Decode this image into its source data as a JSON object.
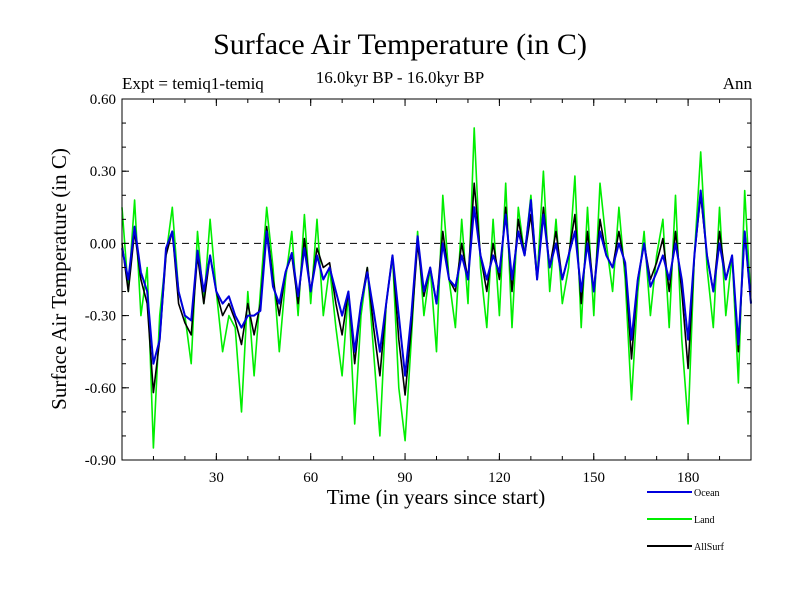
{
  "header": {
    "title": "Surface Air Temperature (in C)",
    "subtitle": "16.0kyr BP - 16.0kyr BP",
    "experiment": "Expt = temiq1-temiq",
    "period": "Ann"
  },
  "chart_data": {
    "type": "line",
    "title": "Surface Air Temperature (in C)",
    "xlabel": "Time (in years since start)",
    "ylabel": "Surface Air Temperature (in C)",
    "xlim": [
      0,
      200
    ],
    "ylim": [
      -0.9,
      0.6
    ],
    "xticks": [
      30,
      60,
      90,
      120,
      150,
      180
    ],
    "xtick_labels": [
      "30",
      "60",
      "90",
      "120",
      "150",
      "180"
    ],
    "yticks": [
      -0.9,
      -0.6,
      -0.3,
      0.0,
      0.3,
      0.6
    ],
    "ytick_labels": [
      "-0.90",
      "-0.60",
      "-0.30",
      "0.00",
      "0.30",
      "0.60"
    ],
    "reference_line": 0.0,
    "legend_position": "bottom-right",
    "series": [
      {
        "name": "Land",
        "color": "#00ee00",
        "x": [
          0,
          2,
          4,
          6,
          8,
          10,
          12,
          14,
          16,
          18,
          20,
          22,
          24,
          26,
          28,
          30,
          32,
          34,
          36,
          38,
          40,
          42,
          44,
          46,
          48,
          50,
          52,
          54,
          56,
          58,
          60,
          62,
          64,
          66,
          68,
          70,
          72,
          74,
          76,
          78,
          80,
          82,
          84,
          86,
          88,
          90,
          92,
          94,
          96,
          98,
          100,
          102,
          104,
          106,
          108,
          110,
          112,
          114,
          116,
          118,
          120,
          122,
          124,
          126,
          128,
          130,
          132,
          134,
          136,
          138,
          140,
          142,
          144,
          146,
          148,
          150,
          152,
          154,
          156,
          158,
          160,
          162,
          164,
          166,
          168,
          170,
          172,
          174,
          176,
          178,
          180,
          182,
          184,
          186,
          188,
          190,
          192,
          194,
          196,
          198,
          200
        ],
        "values": [
          0.15,
          -0.2,
          0.18,
          -0.3,
          -0.1,
          -0.85,
          -0.3,
          -0.05,
          0.15,
          -0.2,
          -0.3,
          -0.5,
          0.05,
          -0.25,
          0.1,
          -0.2,
          -0.45,
          -0.3,
          -0.35,
          -0.7,
          -0.2,
          -0.55,
          -0.2,
          0.15,
          -0.1,
          -0.45,
          -0.15,
          0.05,
          -0.3,
          0.12,
          -0.25,
          0.1,
          -0.3,
          -0.1,
          -0.35,
          -0.55,
          -0.2,
          -0.75,
          -0.3,
          -0.1,
          -0.45,
          -0.8,
          -0.25,
          -0.05,
          -0.6,
          -0.82,
          -0.4,
          0.05,
          -0.3,
          -0.1,
          -0.45,
          0.2,
          -0.15,
          -0.35,
          0.1,
          -0.25,
          0.48,
          -0.1,
          -0.35,
          0.1,
          -0.3,
          0.25,
          -0.35,
          0.15,
          -0.05,
          0.2,
          -0.15,
          0.3,
          -0.2,
          0.1,
          -0.25,
          -0.1,
          0.28,
          -0.35,
          0.15,
          -0.3,
          0.25,
          0.0,
          -0.2,
          0.15,
          -0.15,
          -0.65,
          -0.2,
          0.05,
          -0.3,
          -0.05,
          0.1,
          -0.35,
          0.2,
          -0.4,
          -0.75,
          -0.05,
          0.38,
          -0.1,
          -0.35,
          0.15,
          -0.3,
          -0.05,
          -0.58,
          0.22,
          -0.25
        ]
      },
      {
        "name": "AllSurf",
        "color": "#000000",
        "x": [
          0,
          2,
          4,
          6,
          8,
          10,
          12,
          14,
          16,
          18,
          20,
          22,
          24,
          26,
          28,
          30,
          32,
          34,
          36,
          38,
          40,
          42,
          44,
          46,
          48,
          50,
          52,
          54,
          56,
          58,
          60,
          62,
          64,
          66,
          68,
          70,
          72,
          74,
          76,
          78,
          80,
          82,
          84,
          86,
          88,
          90,
          92,
          94,
          96,
          98,
          100,
          102,
          104,
          106,
          108,
          110,
          112,
          114,
          116,
          118,
          120,
          122,
          124,
          126,
          128,
          130,
          132,
          134,
          136,
          138,
          140,
          142,
          144,
          146,
          148,
          150,
          152,
          154,
          156,
          158,
          160,
          162,
          164,
          166,
          168,
          170,
          172,
          174,
          176,
          178,
          180,
          182,
          184,
          186,
          188,
          190,
          192,
          194,
          196,
          198,
          200
        ],
        "values": [
          0.0,
          -0.2,
          0.05,
          -0.15,
          -0.25,
          -0.62,
          -0.4,
          -0.05,
          0.05,
          -0.25,
          -0.33,
          -0.38,
          -0.05,
          -0.25,
          -0.05,
          -0.2,
          -0.3,
          -0.25,
          -0.32,
          -0.42,
          -0.25,
          -0.38,
          -0.25,
          0.07,
          -0.15,
          -0.3,
          -0.12,
          -0.05,
          -0.25,
          0.02,
          -0.2,
          -0.02,
          -0.1,
          -0.08,
          -0.25,
          -0.38,
          -0.2,
          -0.5,
          -0.25,
          -0.1,
          -0.35,
          -0.55,
          -0.25,
          -0.05,
          -0.4,
          -0.63,
          -0.35,
          0.0,
          -0.22,
          -0.1,
          -0.25,
          0.05,
          -0.15,
          -0.2,
          0.0,
          -0.15,
          0.25,
          -0.05,
          -0.2,
          0.0,
          -0.15,
          0.15,
          -0.2,
          0.1,
          -0.05,
          0.12,
          -0.15,
          0.15,
          -0.1,
          0.05,
          -0.15,
          -0.05,
          0.12,
          -0.25,
          0.05,
          -0.2,
          0.1,
          -0.05,
          -0.1,
          0.05,
          -0.1,
          -0.48,
          -0.15,
          0.0,
          -0.15,
          -0.08,
          0.02,
          -0.2,
          0.05,
          -0.2,
          -0.52,
          -0.05,
          0.2,
          -0.05,
          -0.2,
          0.05,
          -0.15,
          -0.05,
          -0.45,
          0.05,
          -0.25
        ]
      },
      {
        "name": "Ocean",
        "color": "#0000dd",
        "x": [
          0,
          2,
          4,
          6,
          8,
          10,
          12,
          14,
          16,
          18,
          20,
          22,
          24,
          26,
          28,
          30,
          32,
          34,
          36,
          38,
          40,
          42,
          44,
          46,
          48,
          50,
          52,
          54,
          56,
          58,
          60,
          62,
          64,
          66,
          68,
          70,
          72,
          74,
          76,
          78,
          80,
          82,
          84,
          86,
          88,
          90,
          92,
          94,
          96,
          98,
          100,
          102,
          104,
          106,
          108,
          110,
          112,
          114,
          116,
          118,
          120,
          122,
          124,
          126,
          128,
          130,
          132,
          134,
          136,
          138,
          140,
          142,
          144,
          146,
          148,
          150,
          152,
          154,
          156,
          158,
          160,
          162,
          164,
          166,
          168,
          170,
          172,
          174,
          176,
          178,
          180,
          182,
          184,
          186,
          188,
          190,
          192,
          194,
          196,
          198,
          200
        ],
        "values": [
          -0.02,
          -0.15,
          0.07,
          -0.12,
          -0.2,
          -0.5,
          -0.4,
          -0.02,
          0.05,
          -0.2,
          -0.3,
          -0.32,
          -0.03,
          -0.2,
          -0.05,
          -0.2,
          -0.25,
          -0.22,
          -0.3,
          -0.35,
          -0.3,
          -0.3,
          -0.28,
          0.05,
          -0.18,
          -0.25,
          -0.12,
          -0.04,
          -0.22,
          -0.02,
          -0.2,
          -0.05,
          -0.15,
          -0.1,
          -0.2,
          -0.3,
          -0.2,
          -0.45,
          -0.25,
          -0.12,
          -0.28,
          -0.45,
          -0.25,
          -0.05,
          -0.3,
          -0.55,
          -0.3,
          0.03,
          -0.2,
          -0.1,
          -0.25,
          0.0,
          -0.15,
          -0.18,
          -0.05,
          -0.15,
          0.15,
          -0.05,
          -0.15,
          -0.05,
          -0.12,
          0.12,
          -0.15,
          0.05,
          -0.05,
          0.18,
          -0.15,
          0.12,
          -0.1,
          0.0,
          -0.15,
          -0.05,
          0.05,
          -0.2,
          0.0,
          -0.2,
          0.05,
          -0.05,
          -0.1,
          0.0,
          -0.08,
          -0.4,
          -0.15,
          0.0,
          -0.18,
          -0.12,
          -0.05,
          -0.15,
          0.0,
          -0.15,
          -0.4,
          -0.05,
          0.22,
          -0.05,
          -0.2,
          0.0,
          -0.15,
          -0.05,
          -0.42,
          0.05,
          -0.25
        ]
      }
    ],
    "legend": [
      {
        "name": "Ocean",
        "color": "#0000dd"
      },
      {
        "name": "Land",
        "color": "#00ee00"
      },
      {
        "name": "AllSurf",
        "color": "#000000"
      }
    ]
  }
}
